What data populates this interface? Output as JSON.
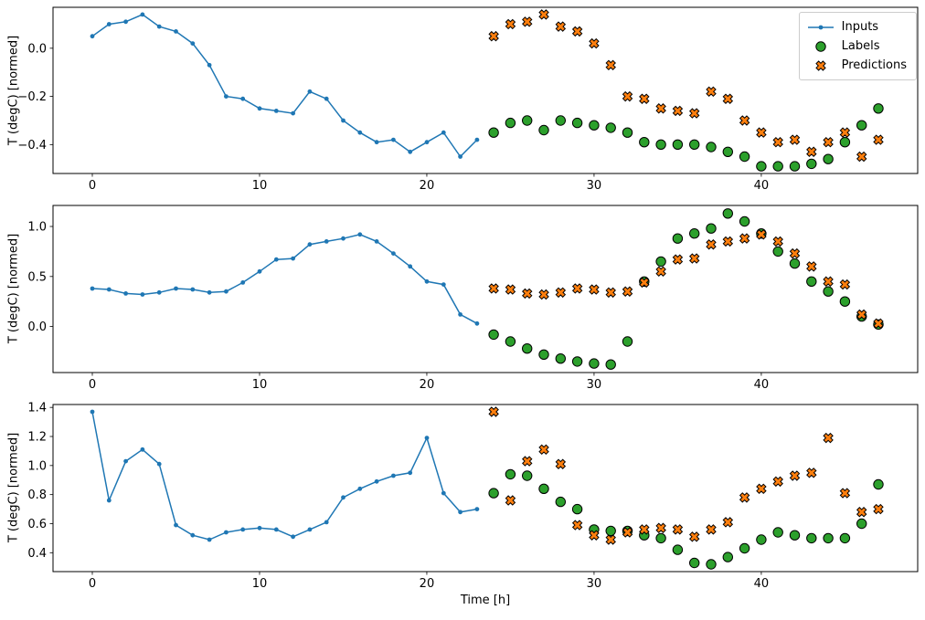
{
  "figure": {
    "background": "#ffffff",
    "xlabel": "Time [h]",
    "legend": {
      "position": "upper right",
      "items": [
        {
          "label": "Inputs",
          "marker": "line-dot",
          "color": "#1f77b4",
          "edge": "#000000"
        },
        {
          "label": "Labels",
          "marker": "circle",
          "color": "#2ca02c",
          "edge": "#000000"
        },
        {
          "label": "Predictions",
          "marker": "x",
          "color": "#ff7f0e",
          "edge": "#000000"
        }
      ]
    }
  },
  "chart_data": [
    {
      "type": "line",
      "ylabel": "T (degC) [normed]",
      "xlabel": "",
      "xlim": [
        -2.35,
        49.35
      ],
      "ylim": [
        -0.52,
        0.17
      ],
      "grid": false,
      "xticks": [
        {
          "v": 0,
          "label": "0"
        },
        {
          "v": 10,
          "label": "10"
        },
        {
          "v": 20,
          "label": "20"
        },
        {
          "v": 30,
          "label": "30"
        },
        {
          "v": 40,
          "label": "40"
        }
      ],
      "yticks": [
        {
          "v": 0.0,
          "label": "0.0"
        },
        {
          "v": -0.2,
          "label": "−0.2"
        },
        {
          "v": -0.4,
          "label": "−0.4"
        }
      ],
      "series": [
        {
          "name": "Inputs",
          "type": "line",
          "color": "#1f77b4",
          "x": [
            0,
            1,
            2,
            3,
            4,
            5,
            6,
            7,
            8,
            9,
            10,
            11,
            12,
            13,
            14,
            15,
            16,
            17,
            18,
            19,
            20,
            21,
            22,
            23
          ],
          "y": [
            0.05,
            0.1,
            0.11,
            0.14,
            0.09,
            0.07,
            0.02,
            -0.07,
            -0.2,
            -0.21,
            -0.25,
            -0.26,
            -0.27,
            -0.18,
            -0.21,
            -0.3,
            -0.35,
            -0.39,
            -0.38,
            -0.43,
            -0.39,
            -0.35,
            -0.45,
            -0.38
          ]
        },
        {
          "name": "Labels",
          "type": "scatter-circle",
          "color": "#2ca02c",
          "edge": "#000000",
          "x": [
            24,
            25,
            26,
            27,
            28,
            29,
            30,
            31,
            32,
            33,
            34,
            35,
            36,
            37,
            38,
            39,
            40,
            41,
            42,
            43,
            44,
            45,
            46,
            47
          ],
          "y": [
            -0.35,
            -0.31,
            -0.3,
            -0.34,
            -0.3,
            -0.31,
            -0.32,
            -0.33,
            -0.35,
            -0.39,
            -0.4,
            -0.4,
            -0.4,
            -0.41,
            -0.43,
            -0.45,
            -0.49,
            -0.49,
            -0.49,
            -0.48,
            -0.46,
            -0.39,
            -0.32,
            -0.25
          ]
        },
        {
          "name": "Predictions",
          "type": "scatter-x",
          "color": "#ff7f0e",
          "edge": "#000000",
          "x": [
            24,
            25,
            26,
            27,
            28,
            29,
            30,
            31,
            32,
            33,
            34,
            35,
            36,
            37,
            38,
            39,
            40,
            41,
            42,
            43,
            44,
            45,
            46,
            47
          ],
          "y": [
            0.05,
            0.1,
            0.11,
            0.14,
            0.09,
            0.07,
            0.02,
            -0.07,
            -0.2,
            -0.21,
            -0.25,
            -0.26,
            -0.27,
            -0.18,
            -0.21,
            -0.3,
            -0.35,
            -0.39,
            -0.38,
            -0.43,
            -0.39,
            -0.35,
            -0.45,
            -0.38
          ]
        }
      ]
    },
    {
      "type": "line",
      "ylabel": "T (degC) [normed]",
      "xlabel": "",
      "xlim": [
        -2.35,
        49.35
      ],
      "ylim": [
        -0.46,
        1.21
      ],
      "grid": false,
      "xticks": [
        {
          "v": 0,
          "label": "0"
        },
        {
          "v": 10,
          "label": "10"
        },
        {
          "v": 20,
          "label": "20"
        },
        {
          "v": 30,
          "label": "30"
        },
        {
          "v": 40,
          "label": "40"
        }
      ],
      "yticks": [
        {
          "v": 0.0,
          "label": "0.0"
        },
        {
          "v": 0.5,
          "label": "0.5"
        },
        {
          "v": 1.0,
          "label": "1.0"
        }
      ],
      "series": [
        {
          "name": "Inputs",
          "type": "line",
          "color": "#1f77b4",
          "x": [
            0,
            1,
            2,
            3,
            4,
            5,
            6,
            7,
            8,
            9,
            10,
            11,
            12,
            13,
            14,
            15,
            16,
            17,
            18,
            19,
            20,
            21,
            22,
            23
          ],
          "y": [
            0.38,
            0.37,
            0.33,
            0.32,
            0.34,
            0.38,
            0.37,
            0.34,
            0.35,
            0.44,
            0.55,
            0.67,
            0.68,
            0.82,
            0.85,
            0.88,
            0.92,
            0.85,
            0.73,
            0.6,
            0.45,
            0.42,
            0.12,
            0.03
          ]
        },
        {
          "name": "Labels",
          "type": "scatter-circle",
          "color": "#2ca02c",
          "edge": "#000000",
          "x": [
            24,
            25,
            26,
            27,
            28,
            29,
            30,
            31,
            32,
            33,
            34,
            35,
            36,
            37,
            38,
            39,
            40,
            41,
            42,
            43,
            44,
            45,
            46,
            47
          ],
          "y": [
            -0.08,
            -0.15,
            -0.22,
            -0.28,
            -0.32,
            -0.35,
            -0.37,
            -0.38,
            -0.15,
            0.45,
            0.65,
            0.88,
            0.93,
            0.98,
            1.13,
            1.05,
            0.93,
            0.75,
            0.63,
            0.45,
            0.35,
            0.25,
            0.1,
            0.02
          ]
        },
        {
          "name": "Predictions",
          "type": "scatter-x",
          "color": "#ff7f0e",
          "edge": "#000000",
          "x": [
            24,
            25,
            26,
            27,
            28,
            29,
            30,
            31,
            32,
            33,
            34,
            35,
            36,
            37,
            38,
            39,
            40,
            41,
            42,
            43,
            44,
            45,
            46,
            47
          ],
          "y": [
            0.38,
            0.37,
            0.33,
            0.32,
            0.34,
            0.38,
            0.37,
            0.34,
            0.35,
            0.44,
            0.55,
            0.67,
            0.68,
            0.82,
            0.85,
            0.88,
            0.92,
            0.85,
            0.73,
            0.6,
            0.45,
            0.42,
            0.12,
            0.03
          ]
        }
      ]
    },
    {
      "type": "line",
      "ylabel": "T (degC) [normed]",
      "xlabel": "Time [h]",
      "xlim": [
        -2.35,
        49.35
      ],
      "ylim": [
        0.27,
        1.42
      ],
      "grid": false,
      "xticks": [
        {
          "v": 0,
          "label": "0"
        },
        {
          "v": 10,
          "label": "10"
        },
        {
          "v": 20,
          "label": "20"
        },
        {
          "v": 30,
          "label": "30"
        },
        {
          "v": 40,
          "label": "40"
        }
      ],
      "yticks": [
        {
          "v": 0.4,
          "label": "0.4"
        },
        {
          "v": 0.6,
          "label": "0.6"
        },
        {
          "v": 0.8,
          "label": "0.8"
        },
        {
          "v": 1.0,
          "label": "1.0"
        },
        {
          "v": 1.2,
          "label": "1.2"
        },
        {
          "v": 1.4,
          "label": "1.4"
        }
      ],
      "series": [
        {
          "name": "Inputs",
          "type": "line",
          "color": "#1f77b4",
          "x": [
            0,
            1,
            2,
            3,
            4,
            5,
            6,
            7,
            8,
            9,
            10,
            11,
            12,
            13,
            14,
            15,
            16,
            17,
            18,
            19,
            20,
            21,
            22,
            23
          ],
          "y": [
            1.37,
            0.76,
            1.03,
            1.11,
            1.01,
            0.59,
            0.52,
            0.49,
            0.54,
            0.56,
            0.57,
            0.56,
            0.51,
            0.56,
            0.61,
            0.78,
            0.84,
            0.89,
            0.93,
            0.95,
            1.19,
            0.81,
            0.68,
            0.7
          ]
        },
        {
          "name": "Labels",
          "type": "scatter-circle",
          "color": "#2ca02c",
          "edge": "#000000",
          "x": [
            24,
            25,
            26,
            27,
            28,
            29,
            30,
            31,
            32,
            33,
            34,
            35,
            36,
            37,
            38,
            39,
            40,
            41,
            42,
            43,
            44,
            45,
            46,
            47
          ],
          "y": [
            0.81,
            0.94,
            0.93,
            0.84,
            0.75,
            0.7,
            0.56,
            0.55,
            0.55,
            0.52,
            0.5,
            0.42,
            0.33,
            0.32,
            0.37,
            0.43,
            0.49,
            0.54,
            0.52,
            0.5,
            0.5,
            0.5,
            0.6,
            0.87
          ]
        },
        {
          "name": "Predictions",
          "type": "scatter-x",
          "color": "#ff7f0e",
          "edge": "#000000",
          "x": [
            24,
            25,
            26,
            27,
            28,
            29,
            30,
            31,
            32,
            33,
            34,
            35,
            36,
            37,
            38,
            39,
            40,
            41,
            42,
            43,
            44,
            45,
            46,
            47
          ],
          "y": [
            1.37,
            0.76,
            1.03,
            1.11,
            1.01,
            0.59,
            0.52,
            0.49,
            0.54,
            0.56,
            0.57,
            0.56,
            0.51,
            0.56,
            0.61,
            0.78,
            0.84,
            0.89,
            0.93,
            0.95,
            1.19,
            0.81,
            0.68,
            0.7
          ]
        }
      ]
    }
  ]
}
